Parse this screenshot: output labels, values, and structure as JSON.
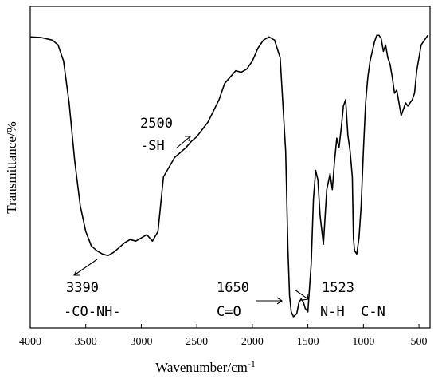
{
  "chart_data": {
    "type": "line",
    "title": "",
    "xlabel": "Wavenumber/cm",
    "xlabel_sup": "-1",
    "ylabel": "Transmittance/%",
    "xlim": [
      4000,
      400
    ],
    "ylim": [
      0,
      100
    ],
    "xticks": [
      "4000",
      "3500",
      "3000",
      "2500",
      "2000",
      "1500",
      "1000",
      "500"
    ],
    "grid": false,
    "legend": "none",
    "series": [
      {
        "name": "",
        "x": [
          4000,
          3900,
          3800,
          3750,
          3700,
          3650,
          3600,
          3550,
          3500,
          3450,
          3400,
          3350,
          3300,
          3250,
          3200,
          3150,
          3100,
          3050,
          3000,
          2950,
          2900,
          2850,
          2800,
          2700,
          2600,
          2550,
          2500,
          2400,
          2300,
          2250,
          2200,
          2150,
          2100,
          2050,
          2000,
          1950,
          1900,
          1850,
          1800,
          1750,
          1700,
          1680,
          1665,
          1650,
          1630,
          1600,
          1580,
          1560,
          1540,
          1523,
          1500,
          1470,
          1450,
          1430,
          1410,
          1390,
          1360,
          1330,
          1300,
          1280,
          1260,
          1240,
          1220,
          1200,
          1180,
          1160,
          1140,
          1120,
          1100,
          1090,
          1080,
          1060,
          1040,
          1020,
          1000,
          980,
          960,
          940,
          920,
          900,
          880,
          860,
          840,
          820,
          800,
          780,
          760,
          740,
          720,
          700,
          680,
          660,
          640,
          620,
          600,
          580,
          560,
          540,
          520,
          500,
          480,
          460,
          440,
          420
        ],
        "y": [
          90.5,
          90.3,
          89.5,
          88,
          83,
          70,
          52,
          38,
          30,
          25.5,
          24,
          23,
          22.5,
          23.5,
          25,
          26.5,
          27.5,
          27,
          28,
          29,
          27,
          30,
          47,
          53,
          56,
          58,
          59.5,
          64,
          71,
          76,
          78,
          80,
          79.5,
          80.5,
          83,
          87,
          89.5,
          90.5,
          89.5,
          84,
          55,
          25,
          10,
          5,
          3.5,
          4.5,
          8,
          9,
          8,
          6,
          5,
          20,
          40,
          49,
          46,
          35,
          26,
          43,
          48,
          43,
          52,
          59,
          56,
          62,
          69,
          71,
          60,
          55,
          47,
          28,
          24,
          23,
          28,
          38,
          55,
          70,
          78,
          83,
          86,
          89,
          91,
          91,
          90,
          86,
          88,
          84,
          82,
          78,
          73,
          74,
          70,
          66,
          68,
          70,
          69,
          70,
          71,
          73,
          80,
          84,
          88,
          89,
          90,
          91
        ]
      }
    ],
    "annotations": [
      {
        "wavenumber": "3390",
        "group": "-CO-NH-"
      },
      {
        "wavenumber": "2500",
        "group": "-SH"
      },
      {
        "wavenumber": "1650",
        "group": "C=O"
      },
      {
        "wavenumber": "1523",
        "group": "N-H  C-N"
      }
    ]
  }
}
